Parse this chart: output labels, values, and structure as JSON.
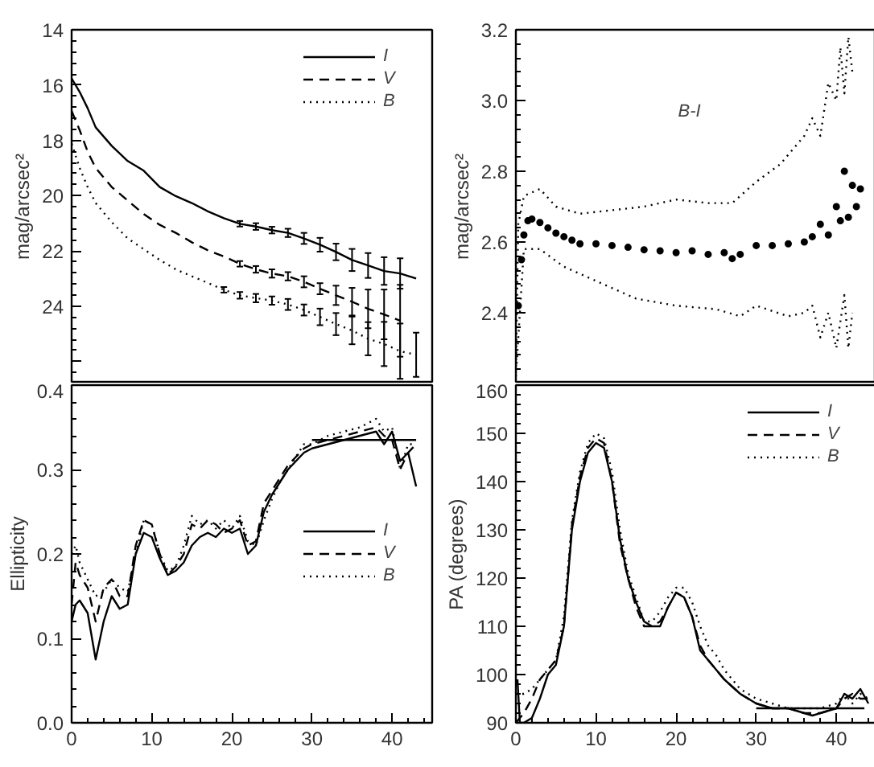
{
  "chart_data": [
    {
      "type": "line",
      "ylabel": "mag/arcsec²",
      "xlim": [
        0,
        45
      ],
      "xticks": [
        0,
        10,
        20,
        30,
        40
      ],
      "ylim": [
        26.8,
        14
      ],
      "yticks": [
        14,
        16,
        18,
        20,
        22,
        24,
        {
          "value": 26,
          "label": null
        }
      ],
      "tick_labels": "y",
      "legend": "top right",
      "series": [
        {
          "name": "I",
          "color": "#000000",
          "line_style": "solid",
          "x": [
            0,
            1,
            2,
            3,
            5,
            7,
            9,
            11,
            13,
            15,
            17,
            19,
            21,
            23,
            25,
            27,
            29,
            31,
            33,
            35,
            37,
            39,
            41,
            43
          ],
          "values": [
            15.76,
            16.25,
            16.84,
            17.53,
            18.2,
            18.75,
            19.1,
            19.69,
            20.02,
            20.27,
            20.57,
            20.82,
            21.02,
            21.12,
            21.25,
            21.35,
            21.55,
            21.78,
            22.04,
            22.33,
            22.53,
            22.73,
            22.82,
            23.0
          ],
          "errors": [
            null,
            null,
            null,
            null,
            null,
            null,
            null,
            null,
            null,
            null,
            null,
            null,
            0.1,
            0.12,
            0.12,
            0.15,
            0.2,
            0.25,
            0.3,
            0.4,
            0.45,
            0.5,
            0.55,
            null
          ]
        },
        {
          "name": "V",
          "color": "#000000",
          "line_style": "dashed",
          "x": [
            0,
            1,
            2,
            3,
            5,
            7,
            9,
            11,
            13,
            15,
            17,
            19,
            21,
            23,
            25,
            27,
            29,
            31,
            33,
            35,
            37,
            39,
            41
          ],
          "values": [
            16.94,
            17.63,
            18.41,
            19.0,
            19.69,
            20.18,
            20.67,
            21.06,
            21.35,
            21.69,
            21.98,
            22.2,
            22.47,
            22.67,
            22.82,
            22.92,
            23.12,
            23.37,
            23.61,
            23.84,
            24.1,
            24.3,
            24.53
          ],
          "errors": [
            null,
            null,
            null,
            null,
            null,
            null,
            null,
            null,
            null,
            null,
            null,
            null,
            0.1,
            0.12,
            0.15,
            0.15,
            0.2,
            0.2,
            0.35,
            0.5,
            0.7,
            0.9,
            1.3
          ]
        },
        {
          "name": "B",
          "color": "#000000",
          "line_style": "dotted",
          "x": [
            0,
            1,
            2,
            3,
            5,
            7,
            9,
            11,
            13,
            15,
            17,
            19,
            21,
            23,
            25,
            27,
            29,
            31,
            33,
            35,
            37,
            39,
            41,
            43
          ],
          "values": [
            18.12,
            19.0,
            19.69,
            20.27,
            20.96,
            21.55,
            21.94,
            22.33,
            22.67,
            22.92,
            23.16,
            23.41,
            23.61,
            23.71,
            23.8,
            23.94,
            24.14,
            24.39,
            24.65,
            24.88,
            25.18,
            25.37,
            25.63,
            25.76
          ],
          "errors": [
            null,
            null,
            null,
            null,
            null,
            null,
            null,
            null,
            null,
            null,
            null,
            0.1,
            0.12,
            0.15,
            0.15,
            0.2,
            0.2,
            0.3,
            0.4,
            0.5,
            0.6,
            0.8,
            1.0,
            0.8
          ]
        }
      ]
    },
    {
      "type": "line",
      "ylabel": "mag/arcsec²",
      "xlim": [
        0,
        45
      ],
      "xticks": [
        0,
        10,
        20,
        30,
        40
      ],
      "ylim": [
        2.2,
        3.2
      ],
      "yticks": [
        2.4,
        2.6,
        2.8,
        {
          "value": 3.0,
          "label": "3.0"
        },
        3.2
      ],
      "tick_labels": "y",
      "annotations": [
        "B-I"
      ],
      "series": [
        {
          "type": "scatter",
          "marker": "circle",
          "color": "#000000",
          "x": [
            0.3,
            0.7,
            1,
            1.5,
            2,
            3,
            4,
            5,
            6,
            7,
            8,
            10,
            12,
            14,
            16,
            18,
            20,
            22,
            24,
            26,
            27,
            28,
            30,
            32,
            34,
            36,
            37,
            38,
            39,
            40,
            40.5,
            41,
            41.5,
            42,
            42.5,
            43
          ],
          "values": [
            2.42,
            2.55,
            2.62,
            2.66,
            2.665,
            2.655,
            2.64,
            2.625,
            2.615,
            2.605,
            2.595,
            2.595,
            2.59,
            2.585,
            2.578,
            2.575,
            2.57,
            2.575,
            2.565,
            2.57,
            2.553,
            2.565,
            2.59,
            2.59,
            2.595,
            2.6,
            2.615,
            2.65,
            2.62,
            2.7,
            2.66,
            2.8,
            2.67,
            2.76,
            2.7,
            2.75
          ]
        },
        {
          "type": "line",
          "line_style": "dotted",
          "color": "#000000",
          "x": [
            0,
            0.3,
            1,
            3,
            5,
            8,
            12,
            16,
            20,
            24,
            27,
            30,
            33,
            36,
            37,
            38,
            39,
            40,
            40.5,
            41,
            41.5,
            42
          ],
          "values": [
            2.23,
            2.65,
            2.73,
            2.75,
            2.7,
            2.68,
            2.69,
            2.7,
            2.72,
            2.71,
            2.71,
            2.77,
            2.82,
            2.9,
            2.95,
            2.9,
            3.05,
            3.0,
            3.15,
            3.02,
            3.18,
            3.08
          ]
        },
        {
          "type": "line",
          "line_style": "dotted",
          "color": "#000000",
          "x": [
            0,
            0.5,
            1,
            3,
            6,
            10,
            15,
            20,
            25,
            28,
            30,
            34,
            36,
            37,
            38,
            39,
            40,
            41,
            41.5,
            42
          ],
          "values": [
            2.22,
            2.4,
            2.58,
            2.58,
            2.53,
            2.49,
            2.44,
            2.42,
            2.41,
            2.39,
            2.42,
            2.39,
            2.4,
            2.42,
            2.33,
            2.4,
            2.3,
            2.45,
            2.3,
            2.4
          ]
        }
      ]
    },
    {
      "type": "line",
      "ylabel": "Ellipticity",
      "xlim": [
        0,
        45
      ],
      "xticks": [
        0,
        10,
        20,
        30,
        40
      ],
      "ylim": [
        0,
        0.4
      ],
      "yticks": [
        {
          "value": 0,
          "label": "0.0"
        },
        0.1,
        0.2,
        0.3,
        0.4
      ],
      "legend": "right",
      "series": [
        {
          "name": "I",
          "color": "#000000",
          "line_style": "solid",
          "x": [
            0,
            0.5,
            1,
            2,
            3,
            4,
            5,
            6,
            7,
            8,
            9,
            10,
            11,
            12,
            13,
            14,
            15,
            16,
            17,
            18,
            19,
            20,
            21,
            22,
            23,
            24,
            25,
            26,
            27,
            28,
            29,
            30,
            32,
            34,
            36,
            38,
            39,
            40,
            41,
            42,
            43
          ],
          "values": [
            0.12,
            0.14,
            0.145,
            0.13,
            0.075,
            0.12,
            0.15,
            0.135,
            0.14,
            0.2,
            0.225,
            0.22,
            0.195,
            0.175,
            0.18,
            0.19,
            0.21,
            0.22,
            0.225,
            0.22,
            0.23,
            0.225,
            0.23,
            0.2,
            0.21,
            0.25,
            0.27,
            0.285,
            0.3,
            0.31,
            0.32,
            0.325,
            0.33,
            0.335,
            0.34,
            0.345,
            0.33,
            0.345,
            0.31,
            0.32,
            0.28
          ]
        },
        {
          "name": "V",
          "color": "#000000",
          "line_style": "dashed",
          "x": [
            0,
            0.5,
            1,
            2,
            3,
            4,
            5,
            6,
            7,
            8,
            9,
            10,
            11,
            12,
            13,
            14,
            15,
            16,
            17,
            18,
            19,
            20,
            21,
            22,
            23,
            24,
            25,
            26,
            27,
            28,
            29,
            30,
            32,
            34,
            36,
            38,
            39,
            40,
            41,
            42,
            43
          ],
          "values": [
            0.14,
            0.19,
            0.175,
            0.16,
            0.12,
            0.16,
            0.17,
            0.15,
            0.15,
            0.21,
            0.24,
            0.235,
            0.2,
            0.175,
            0.185,
            0.2,
            0.235,
            0.23,
            0.24,
            0.235,
            0.225,
            0.23,
            0.24,
            0.21,
            0.215,
            0.26,
            0.275,
            0.29,
            0.305,
            0.315,
            0.325,
            0.33,
            0.335,
            0.34,
            0.345,
            0.35,
            0.34,
            0.335,
            0.3,
            0.32,
            0.33
          ]
        },
        {
          "name": "B",
          "color": "#000000",
          "line_style": "dotted",
          "x": [
            0,
            0.5,
            1,
            2,
            3,
            4,
            5,
            6,
            7,
            8,
            9,
            10,
            11,
            12,
            13,
            14,
            15,
            16,
            17,
            18,
            19,
            20,
            21,
            22,
            23,
            24,
            25,
            26,
            27,
            28,
            29,
            30,
            32,
            34,
            36,
            38,
            39,
            40,
            41,
            42,
            43
          ],
          "values": [
            0.2,
            0.21,
            0.19,
            0.17,
            0.15,
            0.155,
            0.17,
            0.16,
            0.155,
            0.2,
            0.24,
            0.235,
            0.2,
            0.18,
            0.185,
            0.21,
            0.245,
            0.235,
            0.24,
            0.23,
            0.24,
            0.23,
            0.245,
            0.215,
            0.21,
            0.24,
            0.265,
            0.285,
            0.3,
            0.315,
            0.33,
            0.33,
            0.34,
            0.345,
            0.35,
            0.36,
            0.345,
            0.35,
            0.3,
            0.33,
            0.33
          ]
        },
        {
          "color": "#000000",
          "line_style": "solid",
          "x": [
            30,
            43
          ],
          "values": [
            0.335,
            0.335
          ]
        }
      ]
    },
    {
      "type": "line",
      "ylabel": "PA (degrees)",
      "xlim": [
        0,
        45
      ],
      "xticks": [
        0,
        10,
        20,
        30,
        40
      ],
      "ylim": [
        90,
        160
      ],
      "yticks": [
        90,
        100,
        110,
        120,
        130,
        140,
        150,
        160
      ],
      "legend": "top right",
      "series": [
        {
          "name": "I",
          "color": "#000000",
          "line_style": "solid",
          "x": [
            0.2,
            0.5,
            1,
            2,
            3,
            4,
            5,
            6,
            7,
            8,
            9,
            10,
            11,
            12,
            13,
            14,
            15,
            16,
            17,
            18,
            19,
            20,
            21,
            22,
            23,
            24,
            25,
            26,
            28,
            30,
            32,
            34,
            36,
            37,
            38,
            40,
            41,
            42,
            43,
            44
          ],
          "values": [
            99,
            90,
            90,
            91,
            95,
            100,
            102,
            110,
            130,
            140,
            146,
            148,
            147,
            140,
            128,
            120,
            115,
            111,
            110,
            110,
            114,
            117,
            116,
            112,
            105,
            103,
            101,
            99,
            96,
            94,
            93,
            93,
            92,
            91.5,
            92,
            93,
            96,
            95,
            97,
            94
          ]
        },
        {
          "name": "V",
          "color": "#000000",
          "line_style": "dashed",
          "x": [
            0,
            1,
            2,
            3,
            4,
            5,
            6,
            7,
            8,
            9,
            10,
            11,
            12,
            13,
            14,
            15,
            16,
            17,
            18,
            19,
            20,
            21,
            22,
            23,
            24,
            25,
            26,
            28,
            30,
            32,
            34,
            36,
            38,
            40,
            41,
            42,
            43,
            44
          ],
          "values": [
            90,
            92,
            95,
            99,
            101,
            103,
            110,
            131,
            141,
            147,
            149,
            148,
            140,
            127,
            120,
            114,
            110,
            110,
            111,
            114,
            117,
            116,
            112,
            106,
            103,
            101,
            99,
            96,
            94,
            93,
            93,
            92,
            92,
            93,
            95,
            96,
            95,
            95
          ]
        },
        {
          "name": "B",
          "color": "#000000",
          "line_style": "dotted",
          "x": [
            0,
            1,
            2,
            3,
            4,
            5,
            6,
            7,
            8,
            9,
            10,
            11,
            12,
            13,
            14,
            15,
            16,
            17,
            18,
            19,
            20,
            21,
            22,
            23,
            24,
            25,
            26,
            28,
            30,
            32,
            34,
            36,
            38,
            40,
            41,
            42,
            43,
            44
          ],
          "values": [
            96,
            96,
            97,
            99,
            101,
            103,
            112,
            132,
            142,
            148,
            150,
            149,
            142,
            130,
            121,
            116,
            111,
            111,
            113,
            116,
            118,
            118,
            115,
            110,
            106,
            104,
            101,
            97,
            95,
            94,
            93,
            93,
            93,
            94,
            96,
            94,
            96,
            95
          ]
        },
        {
          "color": "#000000",
          "line_style": "solid",
          "x": [
            30,
            43.5
          ],
          "values": [
            93,
            93
          ]
        }
      ]
    }
  ]
}
